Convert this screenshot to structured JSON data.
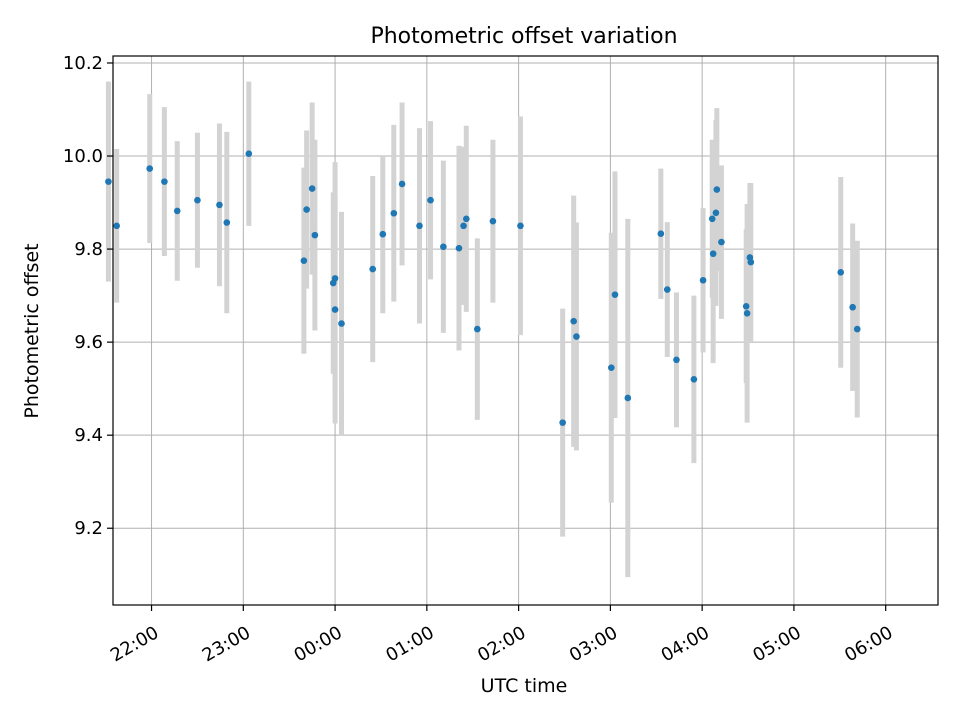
{
  "chart_data": {
    "type": "scatter",
    "title": "Photometric offset variation",
    "xlabel": "UTC time",
    "ylabel": "Photometric offset",
    "grid": true,
    "xlim": [
      -2.42,
      6.57
    ],
    "ylim": [
      9.035,
      10.215
    ],
    "x_ticks": [
      {
        "label": "22:00",
        "value": -2.0
      },
      {
        "label": "23:00",
        "value": -1.0
      },
      {
        "label": "00:00",
        "value": 0.0
      },
      {
        "label": "01:00",
        "value": 1.0
      },
      {
        "label": "02:00",
        "value": 2.0
      },
      {
        "label": "03:00",
        "value": 3.0
      },
      {
        "label": "04:00",
        "value": 4.0
      },
      {
        "label": "05:00",
        "value": 5.0
      },
      {
        "label": "06:00",
        "value": 6.0
      }
    ],
    "y_ticks": [
      {
        "label": "9.2",
        "value": 9.2
      },
      {
        "label": "9.4",
        "value": 9.4
      },
      {
        "label": "9.6",
        "value": 9.6
      },
      {
        "label": "9.8",
        "value": 9.8
      },
      {
        "label": "10.0",
        "value": 10.0
      },
      {
        "label": "10.2",
        "value": 10.2
      }
    ],
    "marker_color": "#1f77b4",
    "errorbar_color": "#d3d3d3",
    "series": [
      {
        "name": "Photometric offset",
        "points": [
          {
            "x": -2.47,
            "y": 9.945,
            "err": 0.215
          },
          {
            "x": -2.38,
            "y": 9.85,
            "err": 0.165
          },
          {
            "x": -2.02,
            "y": 9.973,
            "err": 0.16
          },
          {
            "x": -1.86,
            "y": 9.945,
            "err": 0.16
          },
          {
            "x": -1.72,
            "y": 9.882,
            "err": 0.15
          },
          {
            "x": -1.5,
            "y": 9.905,
            "err": 0.145
          },
          {
            "x": -1.26,
            "y": 9.895,
            "err": 0.175
          },
          {
            "x": -1.18,
            "y": 9.857,
            "err": 0.195
          },
          {
            "x": -0.94,
            "y": 10.005,
            "err": 0.155
          },
          {
            "x": -0.34,
            "y": 9.775,
            "err": 0.2
          },
          {
            "x": -0.31,
            "y": 9.885,
            "err": 0.17
          },
          {
            "x": -0.25,
            "y": 9.93,
            "err": 0.185
          },
          {
            "x": -0.22,
            "y": 9.83,
            "err": 0.205
          },
          {
            "x": -0.02,
            "y": 9.727,
            "err": 0.195
          },
          {
            "x": 0.0,
            "y": 9.737,
            "err": 0.25
          },
          {
            "x": 0.0,
            "y": 9.67,
            "err": 0.245
          },
          {
            "x": 0.07,
            "y": 9.64,
            "err": 0.24
          },
          {
            "x": 0.41,
            "y": 9.757,
            "err": 0.2
          },
          {
            "x": 0.52,
            "y": 9.832,
            "err": 0.17
          },
          {
            "x": 0.64,
            "y": 9.877,
            "err": 0.19
          },
          {
            "x": 0.73,
            "y": 9.94,
            "err": 0.175
          },
          {
            "x": 0.92,
            "y": 9.85,
            "err": 0.21
          },
          {
            "x": 1.04,
            "y": 9.905,
            "err": 0.17
          },
          {
            "x": 1.18,
            "y": 9.805,
            "err": 0.185
          },
          {
            "x": 1.35,
            "y": 9.802,
            "err": 0.22
          },
          {
            "x": 1.4,
            "y": 9.85,
            "err": 0.17
          },
          {
            "x": 1.43,
            "y": 9.865,
            "err": 0.2
          },
          {
            "x": 1.55,
            "y": 9.628,
            "err": 0.195
          },
          {
            "x": 1.72,
            "y": 9.86,
            "err": 0.175
          },
          {
            "x": 2.02,
            "y": 9.85,
            "err": 0.235
          },
          {
            "x": 2.48,
            "y": 9.427,
            "err": 0.245
          },
          {
            "x": 2.6,
            "y": 9.645,
            "err": 0.27
          },
          {
            "x": 2.63,
            "y": 9.612,
            "err": 0.245
          },
          {
            "x": 3.01,
            "y": 9.545,
            "err": 0.29
          },
          {
            "x": 3.05,
            "y": 9.702,
            "err": 0.265
          },
          {
            "x": 3.19,
            "y": 9.48,
            "err": 0.385
          },
          {
            "x": 3.55,
            "y": 9.833,
            "err": 0.14
          },
          {
            "x": 3.62,
            "y": 9.713,
            "err": 0.145
          },
          {
            "x": 3.72,
            "y": 9.562,
            "err": 0.145
          },
          {
            "x": 3.91,
            "y": 9.52,
            "err": 0.18
          },
          {
            "x": 4.01,
            "y": 9.733,
            "err": 0.155
          },
          {
            "x": 4.11,
            "y": 9.865,
            "err": 0.17
          },
          {
            "x": 4.12,
            "y": 9.79,
            "err": 0.235
          },
          {
            "x": 4.15,
            "y": 9.878,
            "err": 0.2
          },
          {
            "x": 4.16,
            "y": 9.928,
            "err": 0.175
          },
          {
            "x": 4.21,
            "y": 9.815,
            "err": 0.165
          },
          {
            "x": 4.48,
            "y": 9.677,
            "err": 0.165
          },
          {
            "x": 4.49,
            "y": 9.662,
            "err": 0.235
          },
          {
            "x": 4.52,
            "y": 9.782,
            "err": 0.16
          },
          {
            "x": 4.53,
            "y": 9.772,
            "err": 0.17
          },
          {
            "x": 5.51,
            "y": 9.75,
            "err": 0.205
          },
          {
            "x": 5.64,
            "y": 9.675,
            "err": 0.18
          },
          {
            "x": 5.69,
            "y": 9.628,
            "err": 0.19
          }
        ]
      }
    ]
  }
}
